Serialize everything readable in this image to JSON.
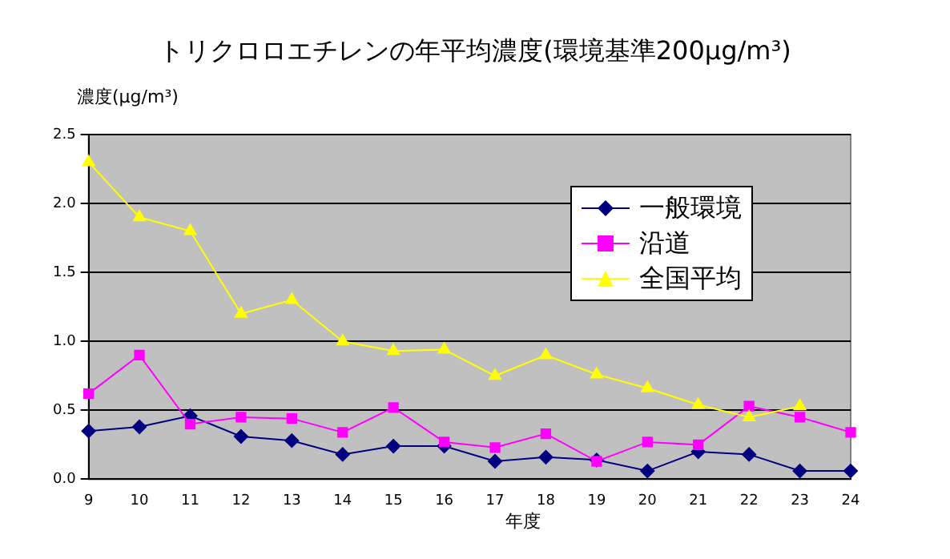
{
  "chart_data": {
    "type": "line",
    "title": "トリクロロエチレンの年平均濃度(環境基準200μg/m³)",
    "ylabel": "濃度(μg/m³)",
    "xlabel": "年度",
    "categories": [
      "9",
      "10",
      "11",
      "12",
      "13",
      "14",
      "15",
      "16",
      "17",
      "18",
      "19",
      "20",
      "21",
      "22",
      "23",
      "24"
    ],
    "series": [
      {
        "name": "一般環境",
        "color": "#000080",
        "marker": "diamond",
        "values": [
          0.35,
          0.38,
          0.46,
          0.31,
          0.28,
          0.18,
          0.24,
          0.24,
          0.13,
          0.16,
          0.14,
          0.06,
          0.2,
          0.18,
          0.06,
          0.06
        ]
      },
      {
        "name": "沿道",
        "color": "#ff00ff",
        "marker": "square",
        "values": [
          0.62,
          0.9,
          0.4,
          0.45,
          0.44,
          0.34,
          0.52,
          0.27,
          0.23,
          0.33,
          0.13,
          0.27,
          0.25,
          0.53,
          0.45,
          0.34
        ]
      },
      {
        "name": "全国平均",
        "color": "#ffff00",
        "marker": "triangle",
        "values": [
          2.3,
          1.9,
          1.8,
          1.2,
          1.3,
          1.0,
          0.93,
          0.94,
          0.75,
          0.9,
          0.76,
          0.66,
          0.54,
          0.45,
          0.53,
          null
        ]
      }
    ],
    "ylim": [
      0,
      2.5
    ],
    "yticks": [
      {
        "value": 0,
        "label": "0.0"
      },
      {
        "value": 0.5,
        "label": "0.5"
      },
      {
        "value": 1,
        "label": "1.0"
      },
      {
        "value": 1.5,
        "label": "1.5"
      },
      {
        "value": 2,
        "label": "2.0"
      },
      {
        "value": 2.5,
        "label": "2.5"
      }
    ],
    "grid": "y",
    "legend": "top right"
  }
}
